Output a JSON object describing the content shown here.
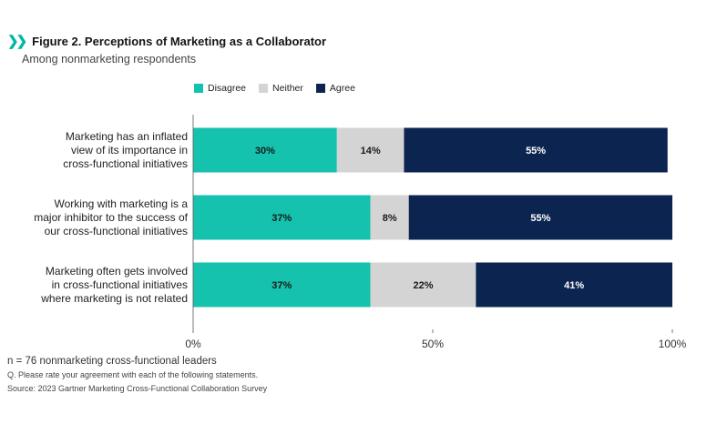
{
  "header": {
    "title": "Figure 2. Perceptions of Marketing as a Collaborator",
    "subtitle": "Among nonmarketing respondents"
  },
  "colors": {
    "disagree": "#14c2ad",
    "neither": "#d4d4d4",
    "agree": "#0c2550",
    "accent": "#00b8a6"
  },
  "chart_data": {
    "type": "bar",
    "orientation": "horizontal",
    "stacked": true,
    "categories": [
      [
        "Marketing has an inflated",
        "view of its importance in",
        "cross-functional initiatives"
      ],
      [
        "Working with marketing is a",
        "major inhibitor to the success of",
        "our cross-functional initiatives"
      ],
      [
        "Marketing often gets involved",
        "in cross-functional initiatives",
        "where marketing is not related"
      ]
    ],
    "series": [
      {
        "name": "Disagree",
        "values": [
          30,
          37,
          37
        ],
        "labels": [
          "30%",
          "37%",
          "37%"
        ]
      },
      {
        "name": "Neither",
        "values": [
          14,
          8,
          22
        ],
        "labels": [
          "14%",
          "8%",
          "22%"
        ]
      },
      {
        "name": "Agree",
        "values": [
          55,
          55,
          41
        ],
        "labels": [
          "55%",
          "55%",
          "41%"
        ]
      }
    ],
    "xlim": [
      0,
      100
    ],
    "xticks": [
      0,
      50,
      100
    ],
    "xtick_labels": [
      "0%",
      "50%",
      "100%"
    ],
    "legend_position": "top",
    "grid": false
  },
  "footer": {
    "note": "n = 76 nonmarketing cross-functional leaders",
    "question": "Q. Please rate your agreement with each of the following statements.",
    "source": "Source: 2023 Gartner Marketing Cross-Functional Collaboration Survey"
  }
}
